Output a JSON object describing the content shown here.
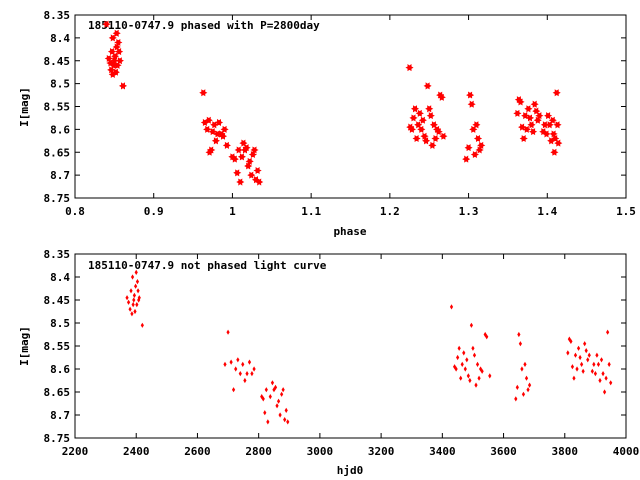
{
  "chart_data": [
    {
      "type": "scatter",
      "title": "185110-0747.9 phased with P=2800day",
      "xlabel": "phase",
      "ylabel": "I[mag]",
      "xlim": [
        0.8,
        1.5
      ],
      "ylim": [
        8.35,
        8.75
      ],
      "y_inverted": true,
      "xticks": [
        "0.8",
        "0.9",
        "1",
        "1.1",
        "1.2",
        "1.3",
        "1.4",
        "1.5"
      ],
      "yticks": [
        "8.35",
        "8.4",
        "8.45",
        "8.5",
        "8.55",
        "8.6",
        "8.65",
        "8.7",
        "8.75"
      ],
      "marker": "star",
      "color": "#ff0000",
      "points": [
        [
          0.84,
          8.37
        ],
        [
          0.843,
          8.445
        ],
        [
          0.845,
          8.455
        ],
        [
          0.846,
          8.47
        ],
        [
          0.847,
          8.43
        ],
        [
          0.848,
          8.48
        ],
        [
          0.848,
          8.4
        ],
        [
          0.849,
          8.46
        ],
        [
          0.85,
          8.45
        ],
        [
          0.851,
          8.44
        ],
        [
          0.852,
          8.475
        ],
        [
          0.853,
          8.42
        ],
        [
          0.853,
          8.39
        ],
        [
          0.854,
          8.46
        ],
        [
          0.855,
          8.41
        ],
        [
          0.856,
          8.43
        ],
        [
          0.857,
          8.45
        ],
        [
          0.861,
          8.505
        ],
        [
          0.963,
          8.52
        ],
        [
          0.965,
          8.585
        ],
        [
          0.968,
          8.6
        ],
        [
          0.97,
          8.58
        ],
        [
          0.971,
          8.65
        ],
        [
          0.973,
          8.645
        ],
        [
          0.975,
          8.605
        ],
        [
          0.977,
          8.59
        ],
        [
          0.979,
          8.625
        ],
        [
          0.981,
          8.61
        ],
        [
          0.983,
          8.585
        ],
        [
          0.986,
          8.61
        ],
        [
          0.988,
          8.615
        ],
        [
          0.99,
          8.6
        ],
        [
          0.993,
          8.635
        ],
        [
          1.0,
          8.66
        ],
        [
          1.003,
          8.665
        ],
        [
          1.006,
          8.695
        ],
        [
          1.008,
          8.645
        ],
        [
          1.01,
          8.715
        ],
        [
          1.012,
          8.66
        ],
        [
          1.014,
          8.63
        ],
        [
          1.016,
          8.645
        ],
        [
          1.018,
          8.64
        ],
        [
          1.02,
          8.68
        ],
        [
          1.022,
          8.67
        ],
        [
          1.024,
          8.7
        ],
        [
          1.026,
          8.655
        ],
        [
          1.028,
          8.645
        ],
        [
          1.03,
          8.71
        ],
        [
          1.032,
          8.69
        ],
        [
          1.034,
          8.715
        ],
        [
          1.225,
          8.465
        ],
        [
          1.226,
          8.595
        ],
        [
          1.228,
          8.6
        ],
        [
          1.23,
          8.575
        ],
        [
          1.232,
          8.555
        ],
        [
          1.234,
          8.62
        ],
        [
          1.236,
          8.59
        ],
        [
          1.238,
          8.565
        ],
        [
          1.24,
          8.6
        ],
        [
          1.242,
          8.58
        ],
        [
          1.244,
          8.615
        ],
        [
          1.246,
          8.625
        ],
        [
          1.248,
          8.505
        ],
        [
          1.25,
          8.555
        ],
        [
          1.252,
          8.57
        ],
        [
          1.254,
          8.635
        ],
        [
          1.256,
          8.59
        ],
        [
          1.258,
          8.62
        ],
        [
          1.26,
          8.6
        ],
        [
          1.262,
          8.605
        ],
        [
          1.264,
          8.525
        ],
        [
          1.266,
          8.53
        ],
        [
          1.268,
          8.615
        ],
        [
          1.297,
          8.665
        ],
        [
          1.3,
          8.64
        ],
        [
          1.302,
          8.525
        ],
        [
          1.304,
          8.545
        ],
        [
          1.306,
          8.6
        ],
        [
          1.308,
          8.655
        ],
        [
          1.31,
          8.59
        ],
        [
          1.312,
          8.62
        ],
        [
          1.314,
          8.645
        ],
        [
          1.316,
          8.635
        ],
        [
          1.362,
          8.565
        ],
        [
          1.364,
          8.535
        ],
        [
          1.366,
          8.54
        ],
        [
          1.368,
          8.595
        ],
        [
          1.37,
          8.62
        ],
        [
          1.372,
          8.57
        ],
        [
          1.374,
          8.6
        ],
        [
          1.376,
          8.555
        ],
        [
          1.378,
          8.575
        ],
        [
          1.38,
          8.59
        ],
        [
          1.382,
          8.605
        ],
        [
          1.384,
          8.545
        ],
        [
          1.386,
          8.56
        ],
        [
          1.388,
          8.58
        ],
        [
          1.39,
          8.57
        ],
        [
          1.395,
          8.605
        ],
        [
          1.397,
          8.59
        ],
        [
          1.399,
          8.61
        ],
        [
          1.401,
          8.57
        ],
        [
          1.403,
          8.59
        ],
        [
          1.405,
          8.625
        ],
        [
          1.407,
          8.58
        ],
        [
          1.408,
          8.61
        ],
        [
          1.409,
          8.65
        ],
        [
          1.41,
          8.62
        ],
        [
          1.412,
          8.52
        ],
        [
          1.413,
          8.59
        ],
        [
          1.414,
          8.63
        ]
      ]
    },
    {
      "type": "scatter",
      "title": "185110-0747.9 not phased light curve",
      "xlabel": "hjd0",
      "ylabel": "I[mag]",
      "xlim": [
        2200,
        4000
      ],
      "ylim": [
        8.35,
        8.75
      ],
      "y_inverted": true,
      "xticks": [
        "2200",
        "2400",
        "2600",
        "2800",
        "3000",
        "3200",
        "3400",
        "3600",
        "3800",
        "4000"
      ],
      "yticks": [
        "8.35",
        "8.4",
        "8.45",
        "8.5",
        "8.55",
        "8.6",
        "8.65",
        "8.7",
        "8.75"
      ],
      "marker": "diamond",
      "color": "#ff0000",
      "points": [
        [
          2370,
          8.445
        ],
        [
          2375,
          8.455
        ],
        [
          2380,
          8.47
        ],
        [
          2383,
          8.43
        ],
        [
          2386,
          8.48
        ],
        [
          2388,
          8.4
        ],
        [
          2390,
          8.46
        ],
        [
          2392,
          8.45
        ],
        [
          2394,
          8.44
        ],
        [
          2396,
          8.475
        ],
        [
          2398,
          8.42
        ],
        [
          2400,
          8.39
        ],
        [
          2402,
          8.46
        ],
        [
          2404,
          8.41
        ],
        [
          2406,
          8.43
        ],
        [
          2408,
          8.45
        ],
        [
          2410,
          8.445
        ],
        [
          2420,
          8.505
        ],
        [
          2690,
          8.59
        ],
        [
          2700,
          8.52
        ],
        [
          2710,
          8.585
        ],
        [
          2718,
          8.645
        ],
        [
          2725,
          8.6
        ],
        [
          2732,
          8.58
        ],
        [
          2740,
          8.61
        ],
        [
          2748,
          8.59
        ],
        [
          2755,
          8.625
        ],
        [
          2762,
          8.61
        ],
        [
          2770,
          8.585
        ],
        [
          2778,
          8.61
        ],
        [
          2785,
          8.6
        ],
        [
          2810,
          8.66
        ],
        [
          2815,
          8.665
        ],
        [
          2820,
          8.695
        ],
        [
          2825,
          8.645
        ],
        [
          2830,
          8.715
        ],
        [
          2838,
          8.66
        ],
        [
          2845,
          8.63
        ],
        [
          2850,
          8.645
        ],
        [
          2855,
          8.64
        ],
        [
          2860,
          8.68
        ],
        [
          2865,
          8.67
        ],
        [
          2870,
          8.7
        ],
        [
          2875,
          8.655
        ],
        [
          2880,
          8.645
        ],
        [
          2885,
          8.71
        ],
        [
          2890,
          8.69
        ],
        [
          2895,
          8.715
        ],
        [
          3430,
          8.465
        ],
        [
          3440,
          8.595
        ],
        [
          3445,
          8.6
        ],
        [
          3450,
          8.575
        ],
        [
          3455,
          8.555
        ],
        [
          3460,
          8.62
        ],
        [
          3465,
          8.59
        ],
        [
          3470,
          8.565
        ],
        [
          3475,
          8.6
        ],
        [
          3480,
          8.58
        ],
        [
          3485,
          8.615
        ],
        [
          3490,
          8.625
        ],
        [
          3495,
          8.505
        ],
        [
          3500,
          8.555
        ],
        [
          3505,
          8.57
        ],
        [
          3510,
          8.635
        ],
        [
          3515,
          8.59
        ],
        [
          3520,
          8.62
        ],
        [
          3525,
          8.6
        ],
        [
          3530,
          8.605
        ],
        [
          3540,
          8.525
        ],
        [
          3545,
          8.53
        ],
        [
          3555,
          8.615
        ],
        [
          3640,
          8.665
        ],
        [
          3645,
          8.64
        ],
        [
          3650,
          8.525
        ],
        [
          3655,
          8.545
        ],
        [
          3660,
          8.6
        ],
        [
          3665,
          8.655
        ],
        [
          3670,
          8.59
        ],
        [
          3675,
          8.62
        ],
        [
          3680,
          8.645
        ],
        [
          3685,
          8.635
        ],
        [
          3810,
          8.565
        ],
        [
          3815,
          8.535
        ],
        [
          3820,
          8.54
        ],
        [
          3825,
          8.595
        ],
        [
          3830,
          8.62
        ],
        [
          3835,
          8.57
        ],
        [
          3840,
          8.6
        ],
        [
          3845,
          8.555
        ],
        [
          3850,
          8.575
        ],
        [
          3855,
          8.59
        ],
        [
          3860,
          8.605
        ],
        [
          3865,
          8.545
        ],
        [
          3870,
          8.56
        ],
        [
          3875,
          8.58
        ],
        [
          3880,
          8.57
        ],
        [
          3890,
          8.605
        ],
        [
          3895,
          8.59
        ],
        [
          3900,
          8.61
        ],
        [
          3905,
          8.57
        ],
        [
          3910,
          8.59
        ],
        [
          3915,
          8.625
        ],
        [
          3920,
          8.58
        ],
        [
          3925,
          8.61
        ],
        [
          3930,
          8.65
        ],
        [
          3935,
          8.62
        ],
        [
          3940,
          8.52
        ],
        [
          3945,
          8.59
        ],
        [
          3950,
          8.63
        ]
      ]
    }
  ]
}
